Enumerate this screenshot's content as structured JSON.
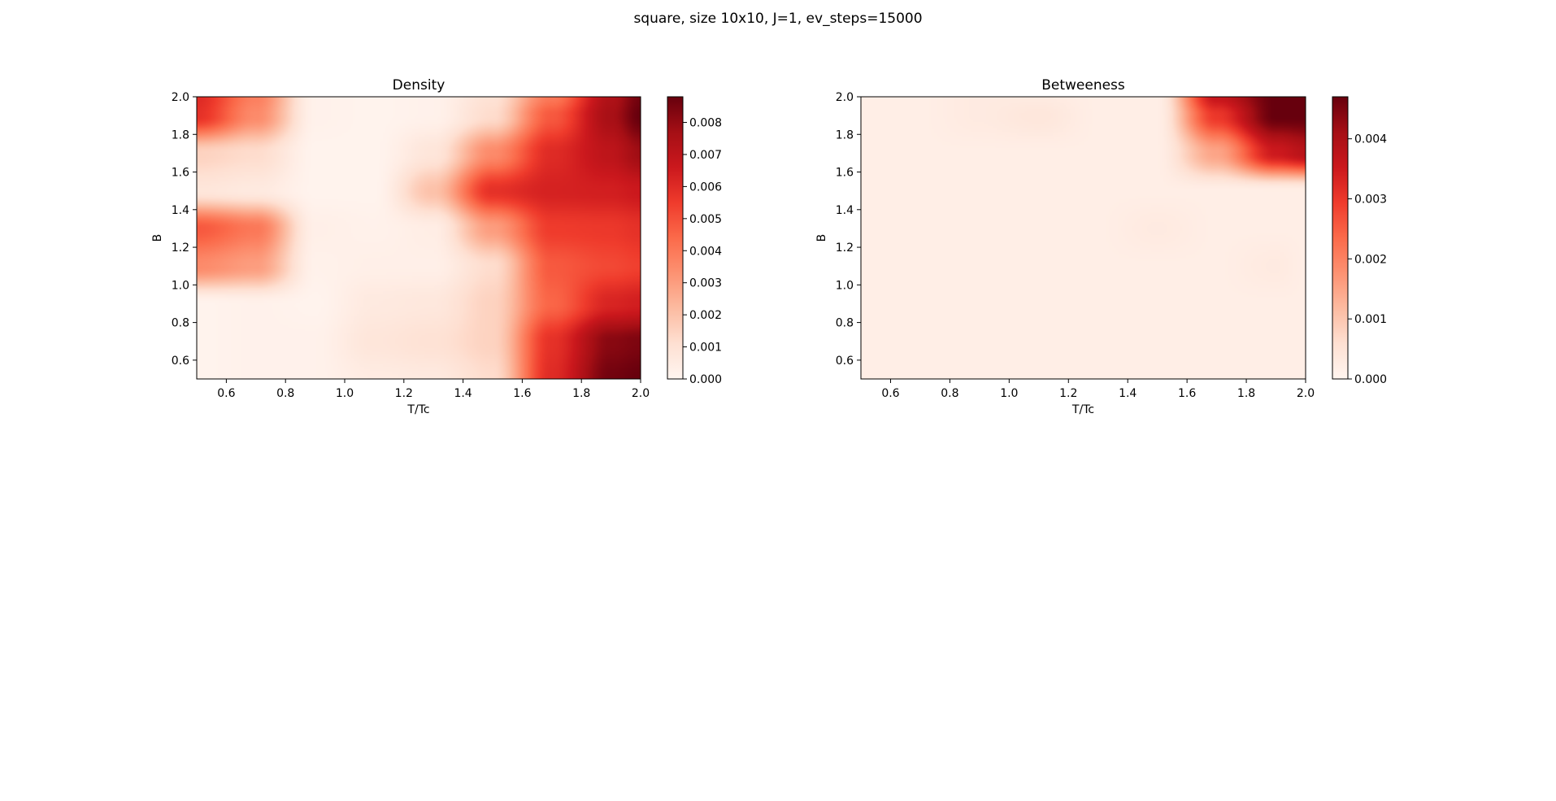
{
  "figure": {
    "suptitle": "square, size 10x10, J=1, ev_steps=15000"
  },
  "colors": {
    "colormap": [
      "#fff5f0",
      "#fee0d2",
      "#fcbba1",
      "#fc9272",
      "#fb6a4a",
      "#ef3b2c",
      "#cb181d",
      "#a50f15",
      "#67000d"
    ],
    "axis": "#000000",
    "background": "#ffffff"
  },
  "chart_data": [
    {
      "type": "heatmap",
      "title": "Density",
      "xlabel": "T/Tc",
      "ylabel": "B",
      "xlim": [
        0.5,
        2.0
      ],
      "ylim": [
        0.5,
        2.0
      ],
      "xticks": [
        "0.6",
        "0.8",
        "1.0",
        "1.2",
        "1.4",
        "1.6",
        "1.8",
        "2.0"
      ],
      "yticks": [
        "0.6",
        "0.8",
        "1.0",
        "1.2",
        "1.4",
        "1.6",
        "1.8",
        "2.0"
      ],
      "colorbar": {
        "vmin": 0.0,
        "vmax": 0.0088,
        "ticks": [
          "0.000",
          "0.001",
          "0.002",
          "0.003",
          "0.004",
          "0.005",
          "0.006",
          "0.007",
          "0.008"
        ]
      },
      "interpolation": "bicubic",
      "x": [
        0.5,
        0.7,
        0.9,
        1.1,
        1.3,
        1.5,
        1.7,
        1.9,
        2.0
      ],
      "y": [
        0.5,
        0.7,
        0.9,
        1.1,
        1.3,
        1.5,
        1.7,
        1.9,
        2.0
      ],
      "values": [
        [
          0.0001,
          0.0002,
          0.0002,
          0.0005,
          0.0006,
          0.0012,
          0.006,
          0.0086,
          0.0088
        ],
        [
          0.0001,
          0.0002,
          0.0002,
          0.0008,
          0.001,
          0.0015,
          0.0058,
          0.0082,
          0.0084
        ],
        [
          0.0001,
          0.0002,
          0.0001,
          0.0006,
          0.0007,
          0.0015,
          0.0045,
          0.0062,
          0.0064
        ],
        [
          0.0035,
          0.003,
          0.0002,
          0.0003,
          0.0003,
          0.0012,
          0.0048,
          0.0052,
          0.0054
        ],
        [
          0.0048,
          0.004,
          0.0003,
          0.0002,
          0.0004,
          0.003,
          0.0055,
          0.0056,
          0.0058
        ],
        [
          0.0008,
          0.0006,
          0.0001,
          0.0001,
          0.002,
          0.0058,
          0.0063,
          0.0064,
          0.0066
        ],
        [
          0.0015,
          0.0012,
          0.0001,
          0.0001,
          0.0008,
          0.0035,
          0.006,
          0.007,
          0.0078
        ],
        [
          0.0058,
          0.0035,
          0.0002,
          0.0001,
          0.0002,
          0.0012,
          0.0048,
          0.0076,
          0.0088
        ],
        [
          0.006,
          0.0038,
          0.0002,
          0.0001,
          0.0002,
          0.001,
          0.004,
          0.0074,
          0.0086
        ]
      ]
    },
    {
      "type": "heatmap",
      "title": "Betweeness",
      "xlabel": "T/Tc",
      "ylabel": "B",
      "xlim": [
        0.5,
        2.0
      ],
      "ylim": [
        0.5,
        2.0
      ],
      "xticks": [
        "0.6",
        "0.8",
        "1.0",
        "1.2",
        "1.4",
        "1.6",
        "1.8",
        "2.0"
      ],
      "yticks": [
        "0.6",
        "0.8",
        "1.0",
        "1.2",
        "1.4",
        "1.6",
        "1.8",
        "2.0"
      ],
      "colorbar": {
        "vmin": 0.0,
        "vmax": 0.0047,
        "ticks": [
          "0.000",
          "0.001",
          "0.002",
          "0.003",
          "0.004"
        ]
      },
      "interpolation": "bicubic",
      "x": [
        0.5,
        0.7,
        0.9,
        1.1,
        1.3,
        1.5,
        1.7,
        1.9,
        2.0
      ],
      "y": [
        0.5,
        0.7,
        0.9,
        1.1,
        1.3,
        1.5,
        1.7,
        1.9,
        2.0
      ],
      "values": [
        [
          0.0002,
          0.0002,
          0.0002,
          0.0002,
          0.0002,
          0.0002,
          0.0002,
          0.0002,
          0.0002
        ],
        [
          0.0002,
          0.0002,
          0.0002,
          0.0002,
          0.0002,
          0.0002,
          0.0002,
          0.0002,
          0.0002
        ],
        [
          0.0002,
          0.0002,
          0.0002,
          0.0002,
          0.0002,
          0.0002,
          0.0002,
          0.0002,
          0.0002
        ],
        [
          0.0002,
          0.0002,
          0.0002,
          0.0002,
          0.0002,
          0.0002,
          0.0002,
          0.0003,
          0.0002
        ],
        [
          0.0002,
          0.0002,
          0.0002,
          0.0002,
          0.0002,
          0.0003,
          0.0002,
          0.0002,
          0.0002
        ],
        [
          0.0002,
          0.0002,
          0.0002,
          0.0002,
          0.0002,
          0.0002,
          0.0002,
          0.0002,
          0.0002
        ],
        [
          0.0002,
          0.0002,
          0.0002,
          0.0002,
          0.0002,
          0.0002,
          0.0015,
          0.0035,
          0.0038
        ],
        [
          0.0002,
          0.0002,
          0.0003,
          0.0004,
          0.0002,
          0.0002,
          0.003,
          0.0047,
          0.0047
        ],
        [
          0.0002,
          0.0002,
          0.0003,
          0.0003,
          0.0002,
          0.0002,
          0.0036,
          0.0047,
          0.0047
        ]
      ]
    }
  ]
}
